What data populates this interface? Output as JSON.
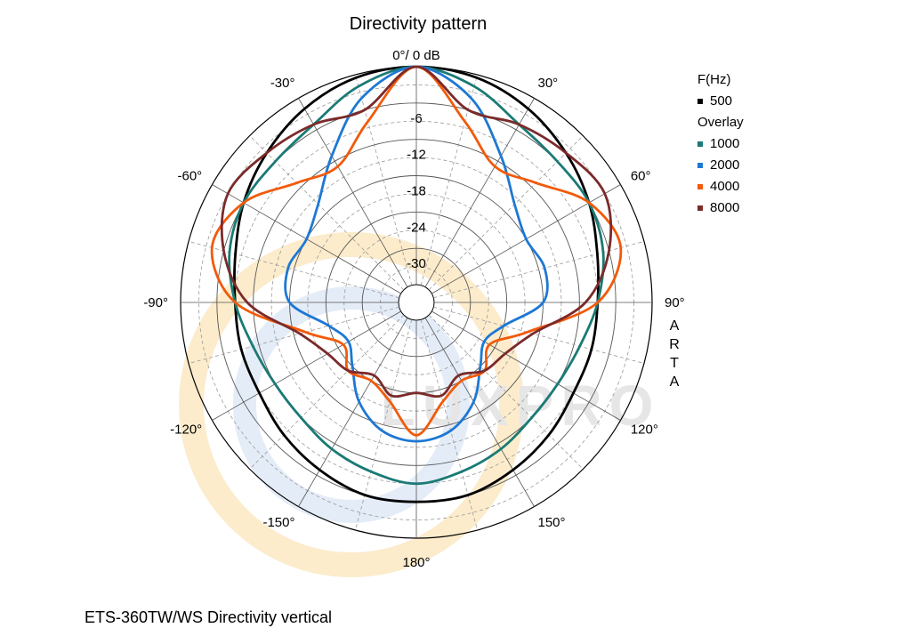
{
  "chart_data": {
    "type": "polar",
    "title": "Directivity pattern",
    "top_label": "0°/ 0 dB",
    "caption": "ETS-360TW/WS  Directivity vertical",
    "side_text": [
      "A",
      "R",
      "T",
      "A"
    ],
    "watermark": "LUXPRO",
    "radial_ticks": [
      "-6",
      "-12",
      "-18",
      "-24",
      "-30"
    ],
    "radial_values": [
      -6,
      -12,
      -18,
      -24,
      -30
    ],
    "r_range": [
      -36,
      0
    ],
    "angle_labels": [
      {
        "angle": 30,
        "text": "30°"
      },
      {
        "angle": 60,
        "text": "60°"
      },
      {
        "angle": 90,
        "text": "90°"
      },
      {
        "angle": 120,
        "text": "120°"
      },
      {
        "angle": 150,
        "text": "150°"
      },
      {
        "angle": 180,
        "text": "180°"
      },
      {
        "angle": -150,
        "text": "-150°"
      },
      {
        "angle": -120,
        "text": "-120°"
      },
      {
        "angle": -90,
        "text": "-90°"
      },
      {
        "angle": -60,
        "text": "-60°"
      },
      {
        "angle": -30,
        "text": "-30°"
      }
    ],
    "legend": {
      "header_main": "F(Hz)",
      "header_overlay": "Overlay"
    },
    "angles": [
      0,
      15,
      30,
      45,
      60,
      75,
      90,
      105,
      120,
      135,
      150,
      165,
      180,
      195,
      210,
      225,
      240,
      255,
      270,
      285,
      300,
      315,
      330,
      345
    ],
    "series": [
      {
        "name": "500",
        "color": "#000000",
        "overlay": false,
        "values": [
          0,
          -0.5,
          -2,
          -4,
          -6,
          -8,
          -9,
          -9,
          -9,
          -8,
          -7,
          -6,
          -6,
          -6,
          -7,
          -8,
          -9,
          -9,
          -9,
          -8,
          -6,
          -4,
          -2,
          -0.5
        ]
      },
      {
        "name": "1000",
        "color": "#1a7a75",
        "overlay": true,
        "values": [
          0,
          -2,
          -5,
          -6,
          -6,
          -7,
          -9,
          -11,
          -12,
          -12,
          -11,
          -10,
          -9,
          -10,
          -11,
          -12,
          -12,
          -11,
          -9,
          -7,
          -6,
          -6,
          -5,
          -2
        ]
      },
      {
        "name": "2000",
        "color": "#1e78d4",
        "overlay": true,
        "values": [
          0,
          -4,
          -11,
          -16,
          -18,
          -17,
          -18,
          -24,
          -26,
          -24,
          -20,
          -17,
          -16,
          -17,
          -20,
          -24,
          -26,
          -24,
          -18,
          -17,
          -18,
          -16,
          -11,
          -4
        ]
      },
      {
        "name": "4000",
        "color": "#f25a0a",
        "overlay": true,
        "values": [
          0,
          -8,
          -13,
          -11,
          -6,
          -4,
          -9,
          -20,
          -25,
          -23,
          -24,
          -22,
          -17,
          -22,
          -24,
          -23,
          -25,
          -20,
          -9,
          -4,
          -6,
          -11,
          -13,
          -8
        ]
      },
      {
        "name": "8000",
        "color": "#7b2a2a",
        "overlay": true,
        "values": [
          0,
          -6,
          -5,
          -4,
          -3,
          -6,
          -11,
          -19,
          -22,
          -23,
          -25,
          -23,
          -24,
          -23,
          -25,
          -23,
          -22,
          -19,
          -11,
          -6,
          -3,
          -4,
          -5,
          -6
        ]
      }
    ]
  }
}
